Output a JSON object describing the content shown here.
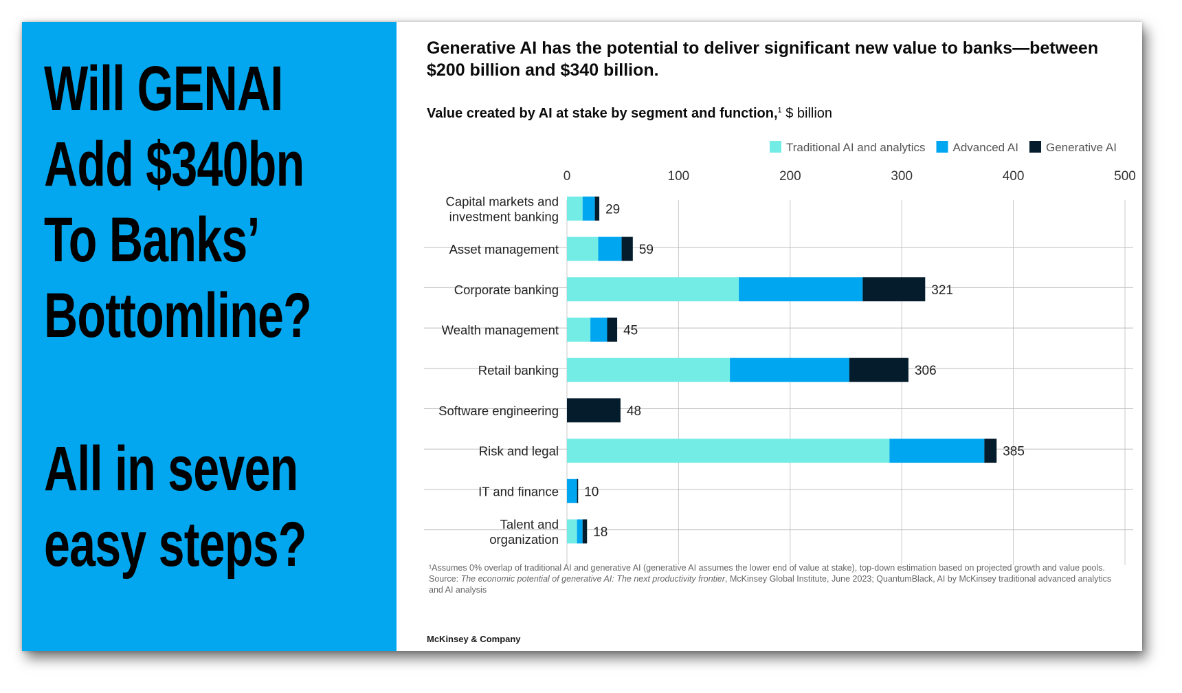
{
  "headline": {
    "block1": [
      "Will GENAI",
      "Add $340bn",
      "To Banks’",
      "Bottomline?"
    ],
    "block2": [
      "All in seven",
      "easy steps?"
    ]
  },
  "panel_colors": {
    "left_background": "#03a7ef"
  },
  "chart_data": {
    "type": "bar",
    "orientation": "horizontal",
    "stacked": true,
    "title": "Generative AI has the potential to deliver significant new value to banks—between $200 billion and $340 billion.",
    "subtitle_bold": "Value created by AI at stake by segment and function,",
    "subtitle_sup": "1",
    "subtitle_rest": " $ billion",
    "xlim": [
      0,
      500
    ],
    "xticks": [
      "0",
      "100",
      "200",
      "300",
      "400",
      "500"
    ],
    "grid": true,
    "legend_position": "top-right",
    "categories": [
      "Capital markets and investment banking",
      "Asset management",
      "Corporate banking",
      "Wealth management",
      "Retail banking",
      "Software engineering",
      "Risk and legal",
      "IT and finance",
      "Talent and organization"
    ],
    "category_lines": [
      [
        "Capital markets and",
        "investment banking"
      ],
      [
        "Asset management"
      ],
      [
        "Corporate banking"
      ],
      [
        "Wealth management"
      ],
      [
        "Retail banking"
      ],
      [
        "Software engineering"
      ],
      [
        "Risk and legal"
      ],
      [
        "IT and finance"
      ],
      [
        "Talent and",
        "organization"
      ]
    ],
    "series": [
      {
        "name": "Traditional AI and analytics",
        "color": "#74ece6",
        "values": [
          14,
          28,
          154,
          21,
          146,
          0,
          289,
          0,
          9
        ]
      },
      {
        "name": "Advanced AI",
        "color": "#00a6ef",
        "values": [
          11,
          21,
          111,
          15,
          107,
          0,
          85,
          9,
          5
        ]
      },
      {
        "name": "Generative  AI",
        "color": "#051c2c",
        "values": [
          4,
          10,
          56,
          9,
          53,
          48,
          11,
          1,
          4
        ]
      }
    ],
    "totals": [
      "29",
      "59",
      "321",
      "45",
      "306",
      "48",
      "385",
      "10",
      "18"
    ]
  },
  "footnotes": {
    "note1": "¹Assumes 0% overlap of traditional AI and generative AI (generative AI assumes the lower end of value at stake), top-down estimation based on projected growth and value pools.",
    "source_prefix": "Source: ",
    "source_title": "The economic potential of generative AI: The next productivity frontier",
    "source_rest": ", McKinsey Global Institute, June 2023; QuantumBlack, AI by McKinsey traditional advanced analytics and AI analysis"
  },
  "brand": "McKinsey & Company"
}
